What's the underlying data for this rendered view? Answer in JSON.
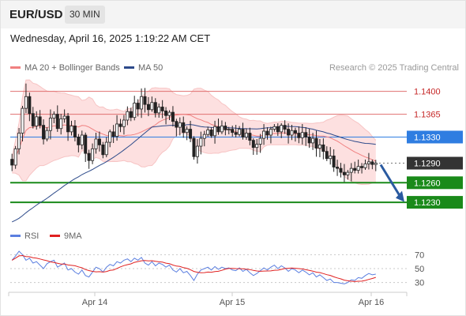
{
  "header": {
    "symbol": "EUR/USD",
    "interval": "30 MIN"
  },
  "timestamp": "Wednesday, April 16, 2025 1:19:22 AM CET",
  "legend": {
    "ma20_label": "MA 20 + Bollinger Bands",
    "ma50_label": "MA 50",
    "rsi_label": "RSI",
    "ma9_label": "9MA",
    "credit": "Research © 2025 Trading Central"
  },
  "colors": {
    "ma20": "#f08080",
    "bollinger_fill": "#fde0e0",
    "ma50": "#2d4a8a",
    "resistance": "#e07070",
    "pivot": "#2f7de1",
    "support": "#1a8a1a",
    "last_price_bg": "#333333",
    "rsi": "#5b7fe0",
    "rsi_ma": "#e02020",
    "candle": "#222222",
    "arrow": "#2a5aa0"
  },
  "chart_data": [
    {
      "type": "candlestick",
      "title": "EUR/USD",
      "interval": "30 MIN",
      "x_labels": [
        "Apr 14",
        "Apr 15",
        "Apr 16"
      ],
      "ylim": [
        1.1195,
        1.1425
      ],
      "levels": [
        {
          "value": 1.14,
          "label": "1.1400",
          "kind": "resistance"
        },
        {
          "value": 1.1365,
          "label": "1.1365",
          "kind": "resistance"
        },
        {
          "value": 1.133,
          "label": "1.1330",
          "kind": "pivot"
        },
        {
          "value": 1.129,
          "label": "1.1290",
          "kind": "last"
        },
        {
          "value": 1.126,
          "label": "1.1260",
          "kind": "support"
        },
        {
          "value": 1.123,
          "label": "1.1230",
          "kind": "support"
        }
      ],
      "close": [
        1.1287,
        1.1312,
        1.1336,
        1.1374,
        1.1392,
        1.1366,
        1.1347,
        1.1361,
        1.1348,
        1.1327,
        1.134,
        1.1359,
        1.1365,
        1.1343,
        1.1358,
        1.1362,
        1.1338,
        1.1347,
        1.133,
        1.1318,
        1.1333,
        1.1305,
        1.1294,
        1.1312,
        1.1327,
        1.1318,
        1.1303,
        1.1322,
        1.1338,
        1.1331,
        1.135,
        1.1346,
        1.1356,
        1.1369,
        1.136,
        1.1382,
        1.1373,
        1.1392,
        1.138,
        1.1372,
        1.1383,
        1.1367,
        1.1376,
        1.137,
        1.1363,
        1.1368,
        1.1354,
        1.1345,
        1.1352,
        1.1337,
        1.1342,
        1.1328,
        1.13,
        1.1316,
        1.1328,
        1.1334,
        1.1341,
        1.1332,
        1.1346,
        1.1338,
        1.1347,
        1.1341,
        1.1342,
        1.1337,
        1.1334,
        1.1342,
        1.133,
        1.1336,
        1.1325,
        1.1314,
        1.1319,
        1.1328,
        1.1339,
        1.1333,
        1.1342,
        1.1346,
        1.1338,
        1.1348,
        1.1342,
        1.1333,
        1.134,
        1.1336,
        1.1329,
        1.1337,
        1.133,
        1.1321,
        1.1328,
        1.1313,
        1.1318,
        1.1308,
        1.1297,
        1.1301,
        1.1284,
        1.1282,
        1.1276,
        1.1272,
        1.1276,
        1.1282,
        1.1279,
        1.1285,
        1.1283,
        1.1289,
        1.1292,
        1.1288,
        1.129
      ],
      "high": 1.1412,
      "low": 1.1271,
      "ma50_start": 1.12
    },
    {
      "type": "line",
      "title": "RSI",
      "series": [
        {
          "name": "RSI"
        },
        {
          "name": "9MA"
        }
      ],
      "ylim": [
        25,
        75
      ],
      "y_ticks": [
        70,
        50,
        30
      ],
      "rsi": [
        62,
        68,
        75,
        70,
        62,
        65,
        58,
        60,
        55,
        50,
        57,
        60,
        62,
        52,
        55,
        58,
        48,
        50,
        45,
        42,
        48,
        40,
        38,
        45,
        52,
        50,
        45,
        52,
        56,
        54,
        60,
        58,
        62,
        64,
        60,
        65,
        62,
        66,
        58,
        55,
        60,
        54,
        58,
        56,
        52,
        55,
        48,
        45,
        50,
        44,
        46,
        40,
        33,
        42,
        48,
        50,
        52,
        48,
        53,
        49,
        52,
        50,
        51,
        48,
        47,
        51,
        46,
        49,
        44,
        40,
        43,
        47,
        51,
        48,
        52,
        55,
        50,
        54,
        51,
        46,
        50,
        48,
        44,
        48,
        45,
        41,
        44,
        38,
        41,
        37,
        33,
        35,
        30,
        30,
        29,
        28,
        30,
        34,
        33,
        37,
        36,
        40,
        43,
        41,
        42
      ]
    }
  ]
}
